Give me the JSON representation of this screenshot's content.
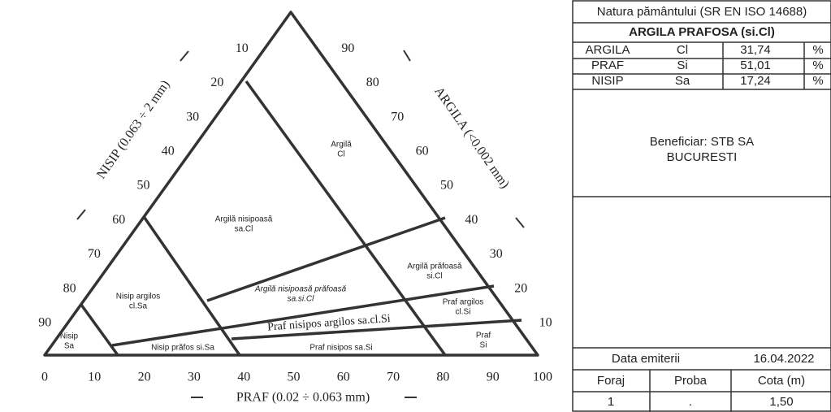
{
  "diagram": {
    "left_ticks": [
      "10",
      "20",
      "30",
      "40",
      "50",
      "60",
      "70",
      "80",
      "90"
    ],
    "right_ticks": [
      "90",
      "80",
      "70",
      "60",
      "50",
      "40",
      "30",
      "20",
      "10"
    ],
    "bottom_ticks": [
      "0",
      "10",
      "20",
      "30",
      "40",
      "50",
      "60",
      "70",
      "80",
      "90",
      "100"
    ],
    "left_axis_label": "NISIP (0.063 ÷ 2 mm)",
    "right_axis_label": "ARGILA (<0.002 mm)",
    "bottom_axis_label": "PRAF (0.02 ÷ 0.063 mm)",
    "regions": [
      [
        "Argilă",
        "Cl"
      ],
      [
        "Argilă nisipoasă",
        "sa.Cl"
      ],
      [
        "Argilă prăfoasă",
        "si.Cl"
      ],
      [
        "Nisip argilos",
        "cl.Sa"
      ],
      [
        "Argilă nisipoasă prăfoasă",
        "sa.si.Cl"
      ],
      [
        "Praf argilos",
        "cl.Si"
      ],
      [
        "Praf nisipos argilos sa.cl.Si"
      ],
      [
        "Nisip",
        "Sa"
      ],
      [
        "Nisip prăfos si.Sa"
      ],
      [
        "Praf nisipos sa.Si"
      ],
      [
        "Praf",
        "Si"
      ]
    ]
  },
  "table": {
    "header": "Natura pământului (SR EN ISO 14688)",
    "classification": "ARGILA PRAFOSA (si.Cl)",
    "rows": [
      [
        "ARGILA",
        "Cl",
        "31,74",
        "%"
      ],
      [
        "PRAF",
        "Si",
        "51,01",
        "%"
      ],
      [
        "NISIP",
        "Sa",
        "17,24",
        "%"
      ]
    ],
    "beneficiary": [
      "Beneficiar: STB SA",
      "BUCURESTI"
    ],
    "issue_label": "Data emiterii",
    "issue_date": "16.04.2022",
    "sample_header": [
      "Foraj",
      "Proba",
      "Cota (m)"
    ],
    "sample_row": [
      "1",
      ".",
      "1,50"
    ]
  }
}
